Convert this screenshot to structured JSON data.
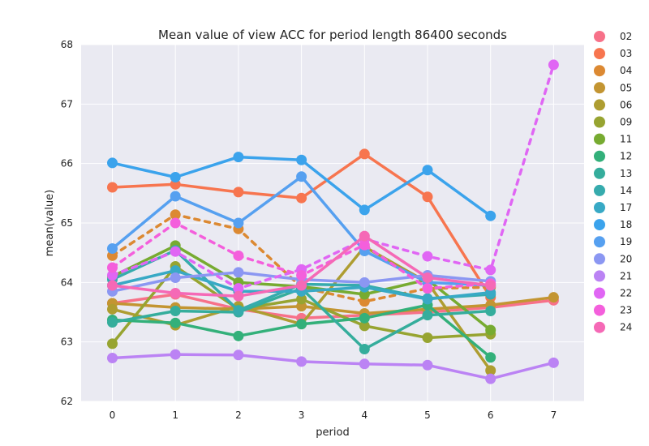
{
  "chart_data": {
    "type": "line",
    "title": "Mean value of view ACC for period length 86400 seconds",
    "xlabel": "period",
    "ylabel": "mean(value)",
    "categories": [
      0,
      1,
      2,
      3,
      4,
      5,
      6,
      7
    ],
    "ylim": [
      62,
      68
    ],
    "yticks": [
      62,
      63,
      64,
      65,
      66,
      67,
      68
    ],
    "grid": true,
    "legend_position": "right",
    "series": [
      {
        "name": "02",
        "color": "#f77189",
        "dashed": false,
        "values": [
          63.65,
          63.8,
          63.55,
          63.4,
          63.45,
          63.5,
          63.58,
          63.7
        ]
      },
      {
        "name": "03",
        "color": "#f7754f",
        "dashed": false,
        "values": [
          65.6,
          65.65,
          65.52,
          65.42,
          66.16,
          65.44,
          63.75,
          null
        ]
      },
      {
        "name": "04",
        "color": "#dc8932",
        "dashed": true,
        "values": [
          64.45,
          65.14,
          64.9,
          63.92,
          63.68,
          63.9,
          63.92,
          null
        ]
      },
      {
        "name": "05",
        "color": "#c39532",
        "dashed": false,
        "values": [
          63.65,
          63.58,
          63.55,
          63.6,
          63.48,
          63.55,
          63.62,
          63.75
        ]
      },
      {
        "name": "06",
        "color": "#ae9d31",
        "dashed": false,
        "values": [
          63.55,
          63.28,
          63.6,
          63.3,
          64.6,
          64.0,
          62.52,
          null
        ]
      },
      {
        "name": "09",
        "color": "#97a431",
        "dashed": false,
        "values": [
          62.97,
          64.27,
          63.55,
          63.72,
          63.27,
          63.07,
          63.13,
          null
        ]
      },
      {
        "name": "11",
        "color": "#77ab31",
        "dashed": false,
        "values": [
          64.1,
          64.62,
          64.0,
          63.93,
          63.8,
          64.05,
          63.2,
          null
        ]
      },
      {
        "name": "12",
        "color": "#33b07a",
        "dashed": false,
        "values": [
          63.37,
          63.32,
          63.1,
          63.3,
          63.4,
          63.62,
          62.74,
          null
        ]
      },
      {
        "name": "13",
        "color": "#35ad9c",
        "dashed": false,
        "values": [
          63.33,
          63.52,
          63.5,
          63.9,
          62.88,
          63.45,
          63.52,
          null
        ]
      },
      {
        "name": "14",
        "color": "#36abad",
        "dashed": false,
        "values": [
          64.05,
          64.54,
          63.53,
          63.97,
          63.95,
          63.73,
          63.8,
          null
        ]
      },
      {
        "name": "17",
        "color": "#38a9c5",
        "dashed": false,
        "values": [
          63.95,
          64.2,
          63.85,
          63.85,
          63.92,
          63.72,
          63.83,
          null
        ]
      },
      {
        "name": "18",
        "color": "#3ba3ec",
        "dashed": false,
        "values": [
          66.01,
          65.77,
          66.11,
          66.06,
          65.22,
          65.89,
          65.12,
          null
        ]
      },
      {
        "name": "19",
        "color": "#56a0f0",
        "dashed": false,
        "values": [
          64.57,
          65.45,
          65.0,
          65.78,
          64.53,
          64.0,
          63.95,
          null
        ]
      },
      {
        "name": "20",
        "color": "#8b97f2",
        "dashed": false,
        "values": [
          63.85,
          64.08,
          64.17,
          64.05,
          64.0,
          64.12,
          64.02,
          null
        ]
      },
      {
        "name": "21",
        "color": "#bb83f4",
        "dashed": false,
        "values": [
          62.73,
          62.79,
          62.78,
          62.67,
          62.63,
          62.61,
          62.38,
          62.65
        ]
      },
      {
        "name": "22",
        "color": "#e066f4",
        "dashed": true,
        "values": [
          64.12,
          64.52,
          63.9,
          64.22,
          64.73,
          64.44,
          64.21,
          67.66
        ]
      },
      {
        "name": "23",
        "color": "#f45fdc",
        "dashed": true,
        "values": [
          64.25,
          65.0,
          64.45,
          64.12,
          64.63,
          63.9,
          63.98,
          null
        ]
      },
      {
        "name": "24",
        "color": "#f569b6",
        "dashed": false,
        "values": [
          63.95,
          63.82,
          63.77,
          63.95,
          64.78,
          64.08,
          63.95,
          null
        ]
      }
    ]
  }
}
